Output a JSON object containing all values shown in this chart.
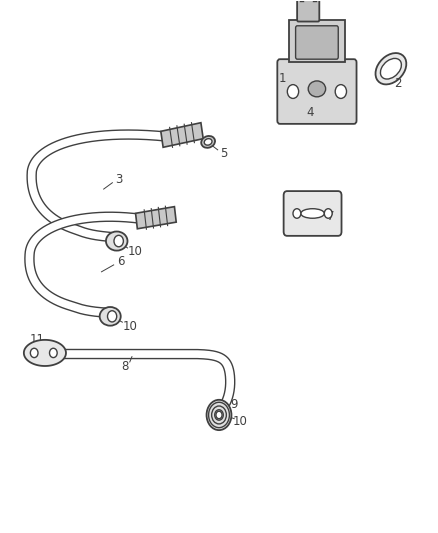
{
  "background_color": "#ffffff",
  "line_color": "#404040",
  "figsize": [
    4.38,
    5.33
  ],
  "dpi": 100,
  "tube_lw_outer": 7.5,
  "tube_lw_inner": 5.5
}
